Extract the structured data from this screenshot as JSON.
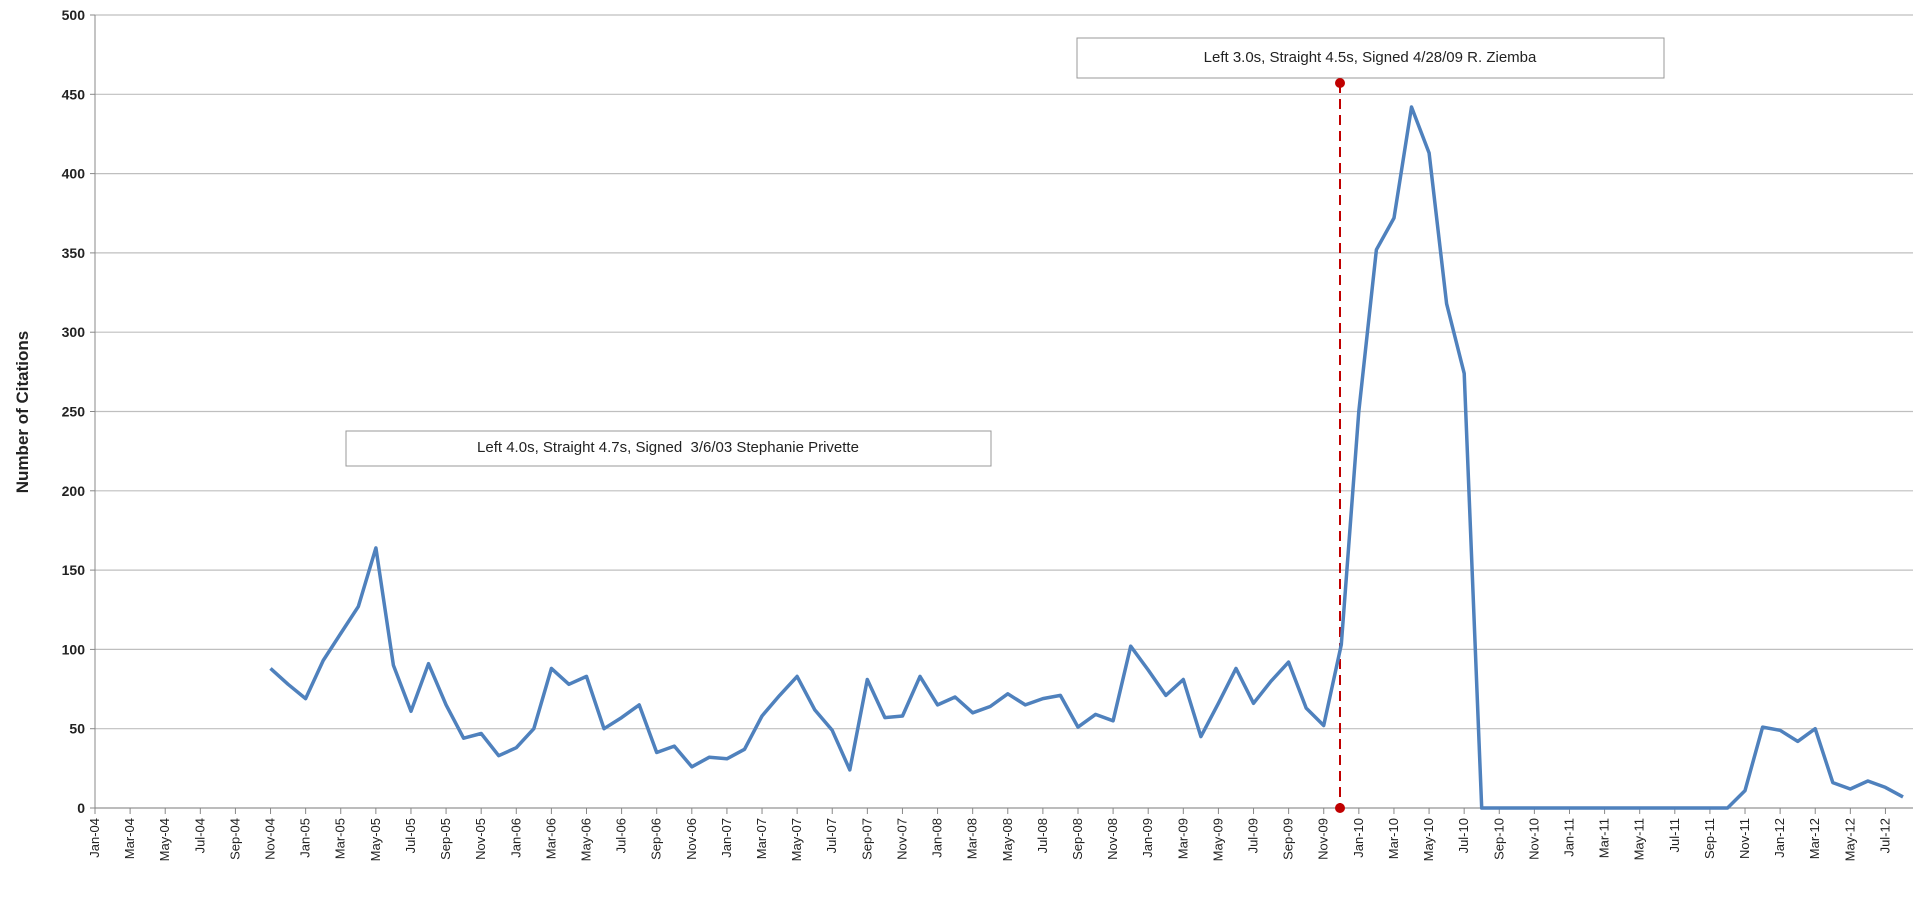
{
  "chart_data": {
    "type": "line",
    "y_label": "Number of Citations",
    "annotations": [
      "Left 4.0s, Straight 4.7s, Signed  3/6/03 Stephanie Privette",
      "Left 3.0s, Straight 4.5s, Signed 4/28/09 R. Ziemba"
    ],
    "categories": [
      "Jan-04",
      null,
      "Mar-04",
      null,
      "May-04",
      null,
      "Jul-04",
      null,
      "Sep-04",
      null,
      "Nov-04",
      null,
      "Jan-05",
      null,
      "Mar-05",
      null,
      "May-05",
      null,
      "Jul-05",
      null,
      "Sep-05",
      null,
      "Nov-05",
      null,
      "Jan-06",
      null,
      "Mar-06",
      null,
      "May-06",
      null,
      "Jul-06",
      null,
      "Sep-06",
      null,
      "Nov-06",
      null,
      "Jan-07",
      null,
      "Mar-07",
      null,
      "May-07",
      null,
      "Jul-07",
      null,
      "Sep-07",
      null,
      "Nov-07",
      null,
      "Jan-08",
      null,
      "Mar-08",
      null,
      "May-08",
      null,
      "Jul-08",
      null,
      "Sep-08",
      null,
      "Nov-08",
      null,
      "Jan-09",
      null,
      "Mar-09",
      null,
      "May-09",
      null,
      "Jul-09",
      null,
      "Sep-09",
      null,
      "Nov-09",
      null,
      "Jan-10",
      null,
      "Mar-10",
      null,
      "May-10",
      null,
      "Jul-10",
      null,
      "Sep-10",
      null,
      "Nov-10",
      null,
      "Jan-11",
      null,
      "Mar-11",
      null,
      "May-11",
      null,
      "Jul-11",
      null,
      "Sep-11",
      null,
      "Nov-11",
      null,
      "Jan-12",
      null,
      "Mar-12",
      null,
      "May-12",
      null,
      "Jul-12",
      null
    ],
    "series": [
      {
        "name": "Citations",
        "color": "#4f81bd",
        "values": [
          null,
          null,
          null,
          null,
          null,
          null,
          null,
          null,
          null,
          null,
          88,
          78,
          69,
          93,
          110,
          127,
          164,
          90,
          61,
          91,
          65,
          44,
          47,
          33,
          38,
          50,
          88,
          78,
          83,
          50,
          57,
          65,
          35,
          39,
          26,
          32,
          31,
          37,
          58,
          71,
          83,
          62,
          49,
          24,
          81,
          57,
          58,
          83,
          65,
          70,
          60,
          64,
          72,
          65,
          69,
          71,
          51,
          59,
          55,
          102,
          87,
          71,
          81,
          45,
          66,
          88,
          66,
          80,
          92,
          63,
          52,
          103,
          250,
          352,
          372,
          442,
          413,
          318,
          274,
          0,
          0,
          0,
          0,
          0,
          0,
          0,
          0,
          0,
          0,
          0,
          0,
          0,
          0,
          0,
          11,
          51,
          49,
          42,
          50,
          16,
          12,
          17,
          13,
          7
        ]
      }
    ],
    "ylim": [
      0,
      500
    ],
    "yticks": [
      0,
      50,
      100,
      150,
      200,
      250,
      300,
      350,
      400,
      450,
      500
    ],
    "grid": true
  }
}
